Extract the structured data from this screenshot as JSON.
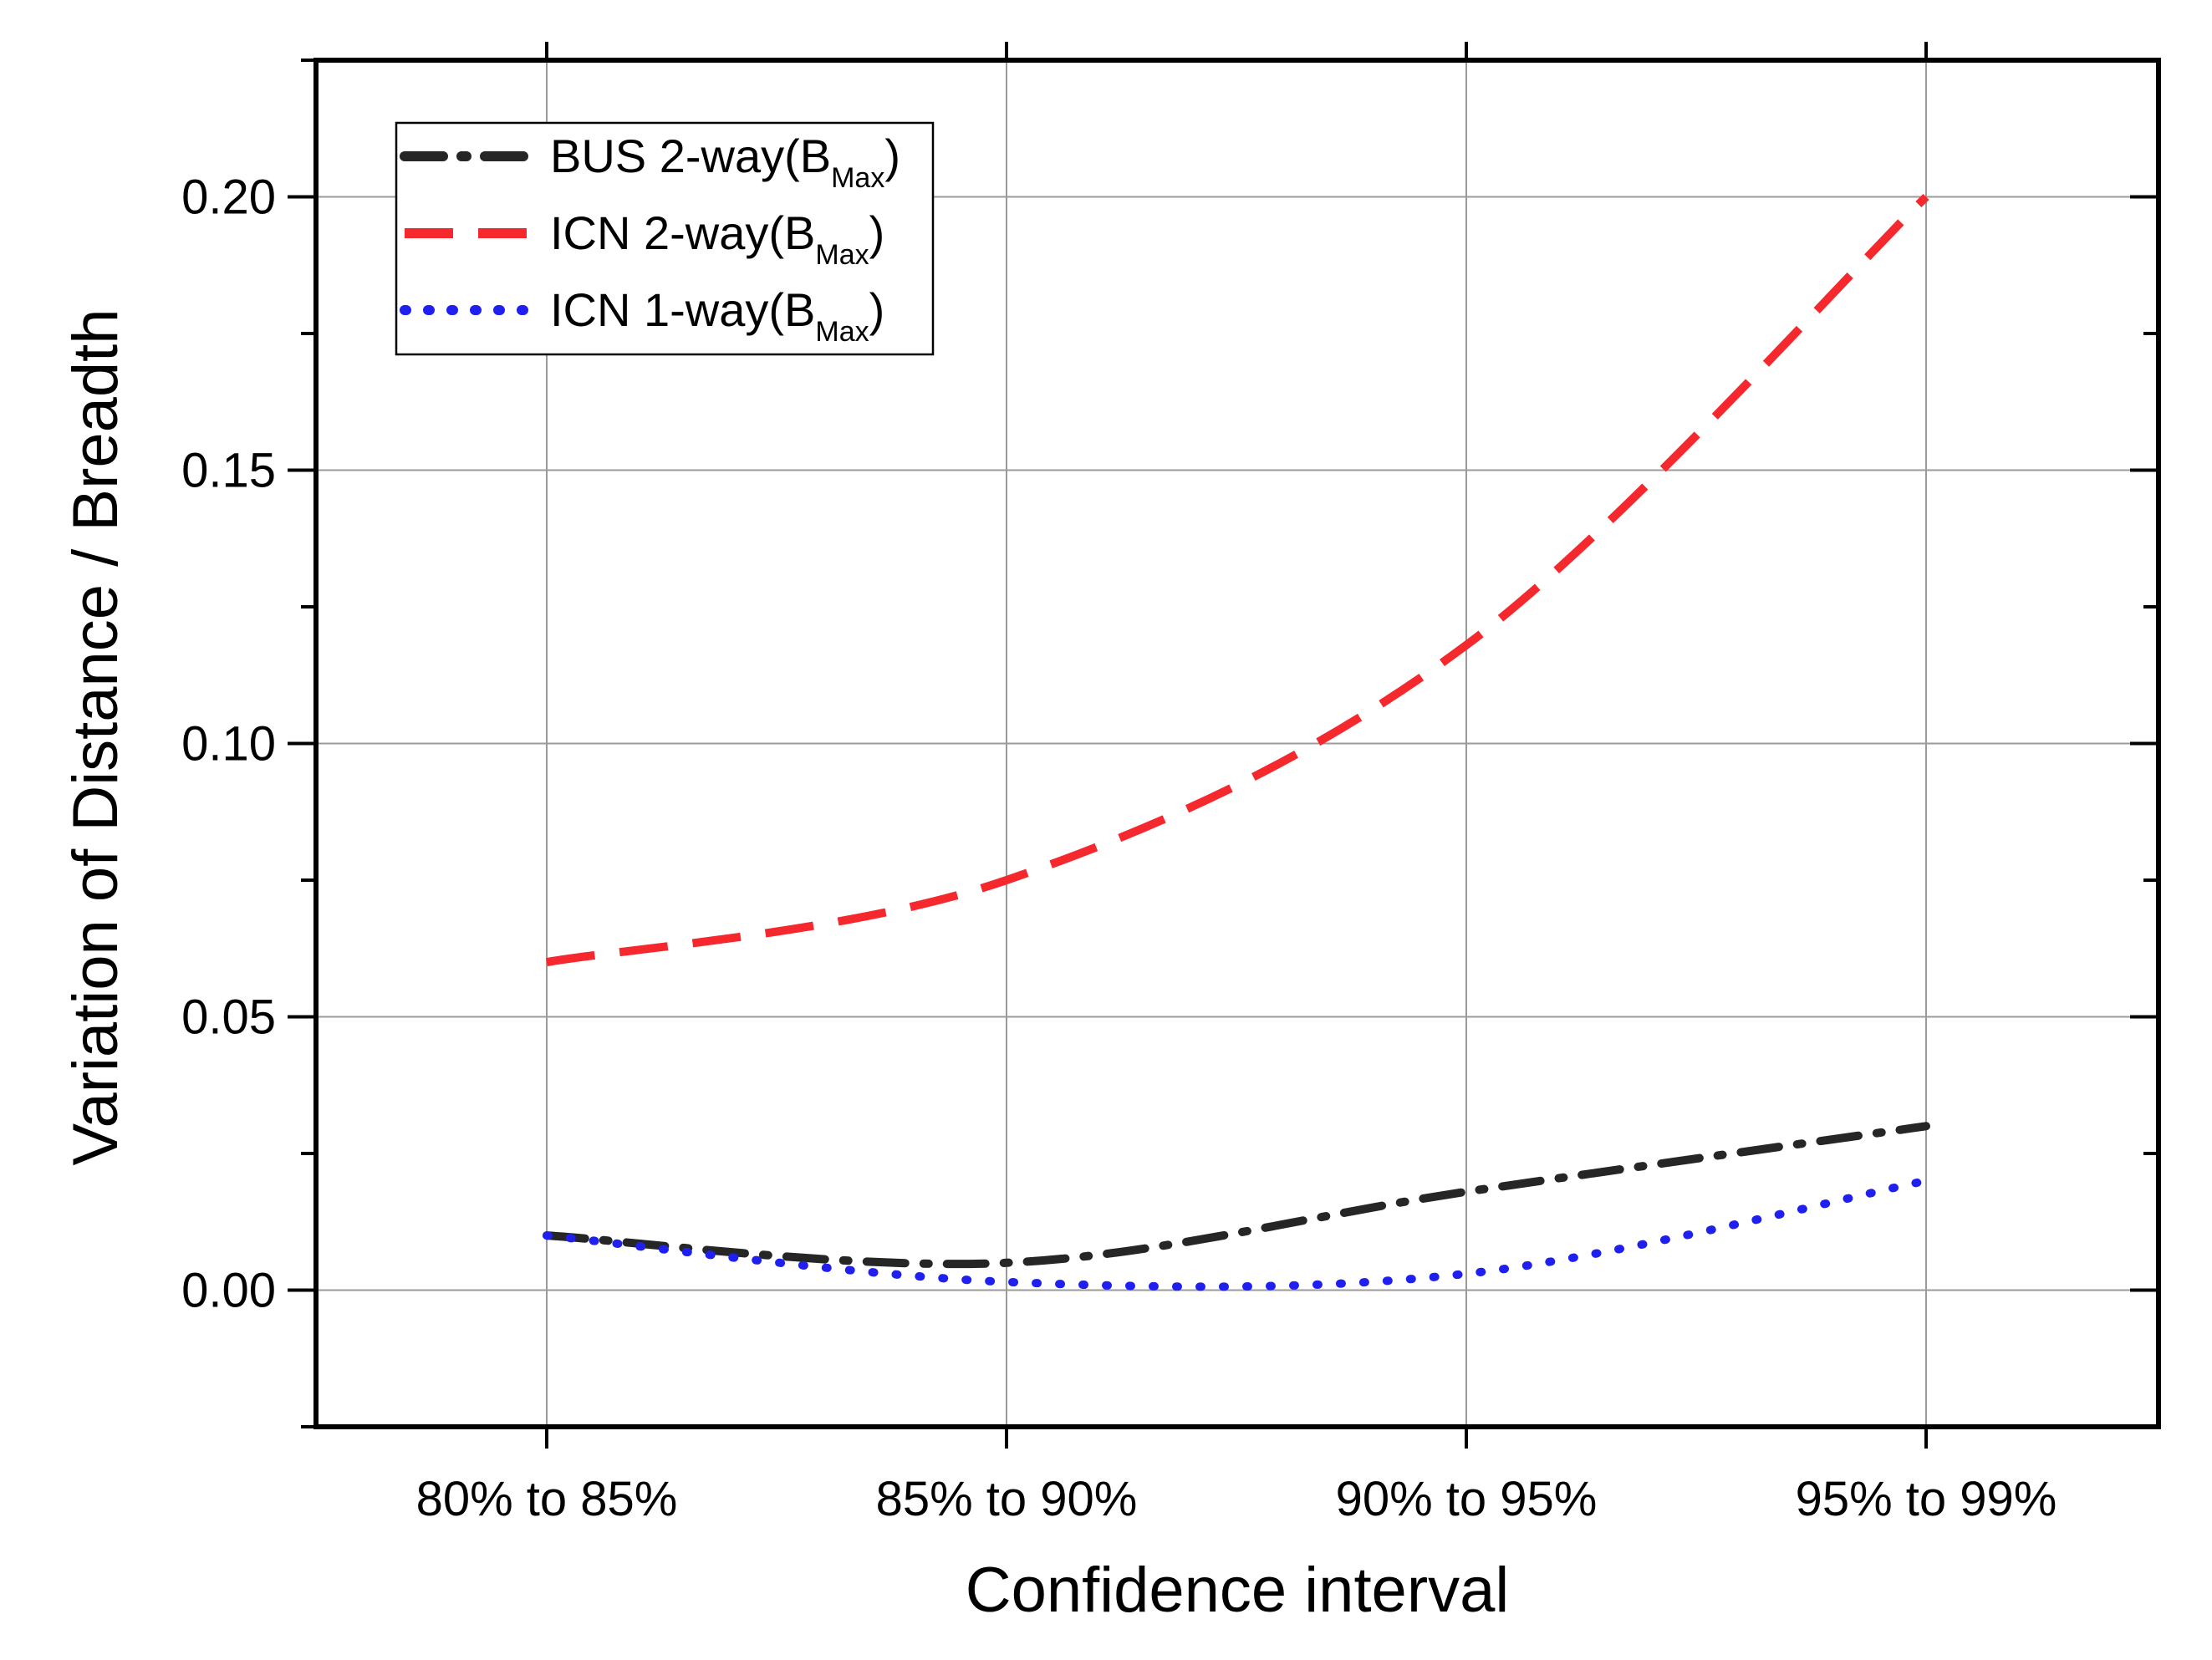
{
  "chart_data": {
    "type": "line",
    "title": "",
    "xlabel": "Confidence interval",
    "ylabel": "Variation of Distance / Breadth",
    "categories": [
      "80% to 85%",
      "85% to 90%",
      "90% to 95%",
      "95% to 99%"
    ],
    "ylim": [
      -0.025,
      0.225
    ],
    "yticks": [
      0.0,
      0.05,
      0.1,
      0.15,
      0.2
    ],
    "ytick_labels": [
      "0.00",
      "0.05",
      "0.10",
      "0.15",
      "0.20"
    ],
    "grid": true,
    "legend_position": "top-left",
    "series": [
      {
        "name": "BUS 2-way(B_Max)",
        "legend_main": "BUS 2-way(B",
        "legend_sub": "Max",
        "legend_close": ")",
        "color": "#262626",
        "style": "dash-dot",
        "values": [
          0.01,
          0.005,
          0.018,
          0.03
        ]
      },
      {
        "name": "ICN 2-way(B_Max)",
        "legend_main": "ICN 2-way(B",
        "legend_sub": "Max",
        "legend_close": ")",
        "color": "#f5282d",
        "style": "dashed",
        "values": [
          0.06,
          0.075,
          0.118,
          0.2
        ]
      },
      {
        "name": "ICN 1-way(B_Max)",
        "legend_main": "ICN 1-way(B",
        "legend_sub": "Max",
        "legend_close": ")",
        "color": "#1f1fef",
        "style": "dotted",
        "values": [
          0.01,
          0.0015,
          0.003,
          0.02
        ]
      }
    ]
  }
}
